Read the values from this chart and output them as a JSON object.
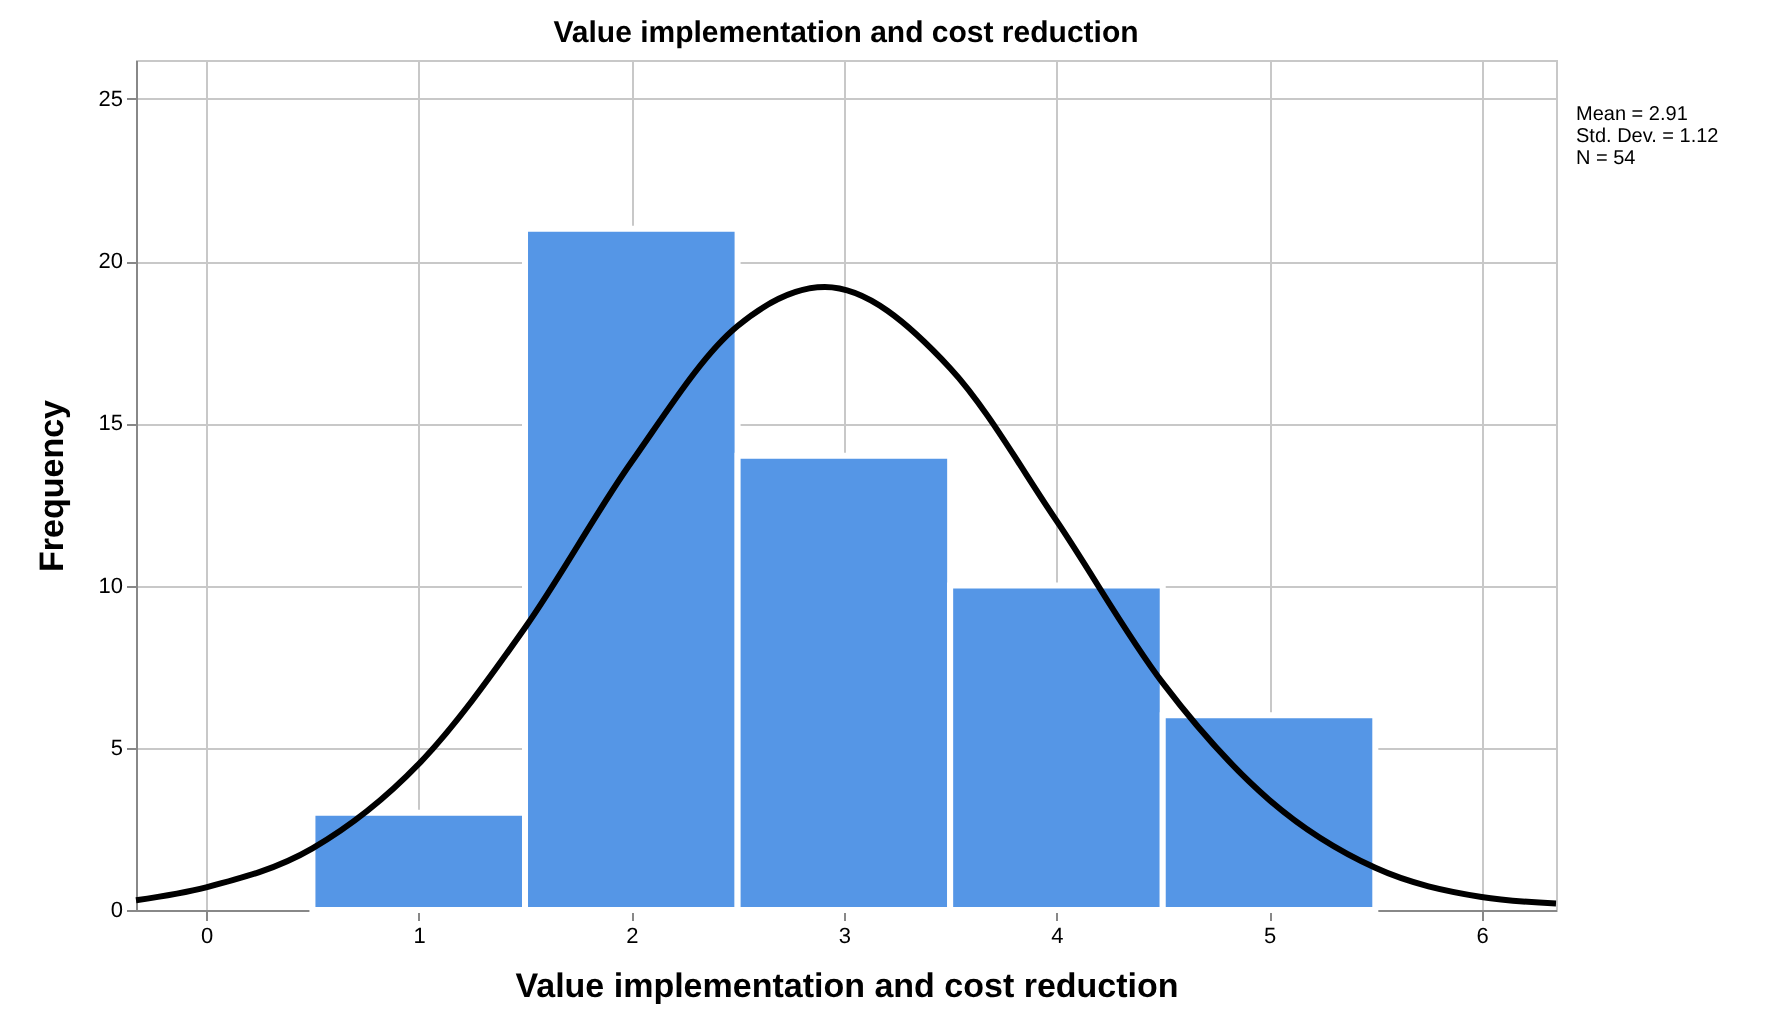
{
  "chart_data": {
    "type": "histogram",
    "title": "Value implementation and cost reduction",
    "xlabel": "Value implementation and cost reduction",
    "ylabel": "Frequency",
    "bins": [
      0.5,
      1.5,
      2.5,
      3.5,
      4.5,
      5.5
    ],
    "values": [
      3,
      21,
      14,
      10,
      6
    ],
    "color": "#5596e6",
    "series": [
      {
        "type": "line",
        "color": "#000000",
        "x": [
          -0.33,
          0,
          0.5,
          1,
          1.5,
          2,
          2.5,
          2.91,
          3.5,
          4,
          4.5,
          5,
          5.5,
          6,
          6.35
        ],
        "values": [
          0.3,
          0.7,
          1.9,
          4.5,
          8.7,
          13.8,
          18.0,
          19.2,
          16.7,
          12.0,
          7.0,
          3.4,
          1.3,
          0.4,
          0.2
        ]
      }
    ],
    "xlim": [
      -0.33,
      6.35
    ],
    "xticks": [
      0,
      1,
      2,
      3,
      4,
      5,
      6
    ],
    "ylim": [
      0,
      26.2
    ],
    "yticks": [
      0,
      5,
      10,
      15,
      20,
      25
    ],
    "grid": true,
    "marker": "none",
    "line_style": "solid",
    "annotations": [
      "Mean = 2.91",
      "Std. Dev. = 1.12",
      "N = 54"
    ]
  }
}
